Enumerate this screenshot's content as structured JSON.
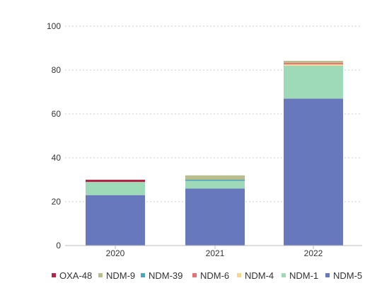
{
  "chart_data": {
    "type": "bar",
    "stacked": true,
    "categories": [
      "2020",
      "2021",
      "2022"
    ],
    "series": [
      {
        "name": "NDM-5",
        "color": "#6779bc",
        "values": [
          23,
          26,
          67
        ]
      },
      {
        "name": "NDM-1",
        "color": "#9ed9b8",
        "values": [
          6,
          3.5,
          15
        ]
      },
      {
        "name": "NDM-4",
        "color": "#f7d78f",
        "values": [
          0,
          0,
          0.6
        ]
      },
      {
        "name": "NDM-6",
        "color": "#e57373",
        "values": [
          0,
          0,
          0.7
        ]
      },
      {
        "name": "NDM-39",
        "color": "#4fa3bd",
        "values": [
          0,
          0.5,
          0
        ]
      },
      {
        "name": "NDM-9",
        "color": "#b9bd8d",
        "values": [
          0,
          2,
          0.9
        ]
      },
      {
        "name": "OXA-48",
        "color": "#b5254a",
        "values": [
          1,
          0,
          0
        ]
      }
    ],
    "legend_order": [
      "OXA-48",
      "NDM-9",
      "NDM-39",
      "NDM-6",
      "NDM-4",
      "NDM-1",
      "NDM-5"
    ],
    "ylim": [
      0,
      100
    ],
    "yticks": [
      0,
      20,
      40,
      60,
      80,
      100
    ],
    "grid": "horizontal dotted",
    "legend_position": "bottom",
    "title": "",
    "xlabel": "",
    "ylabel": ""
  }
}
